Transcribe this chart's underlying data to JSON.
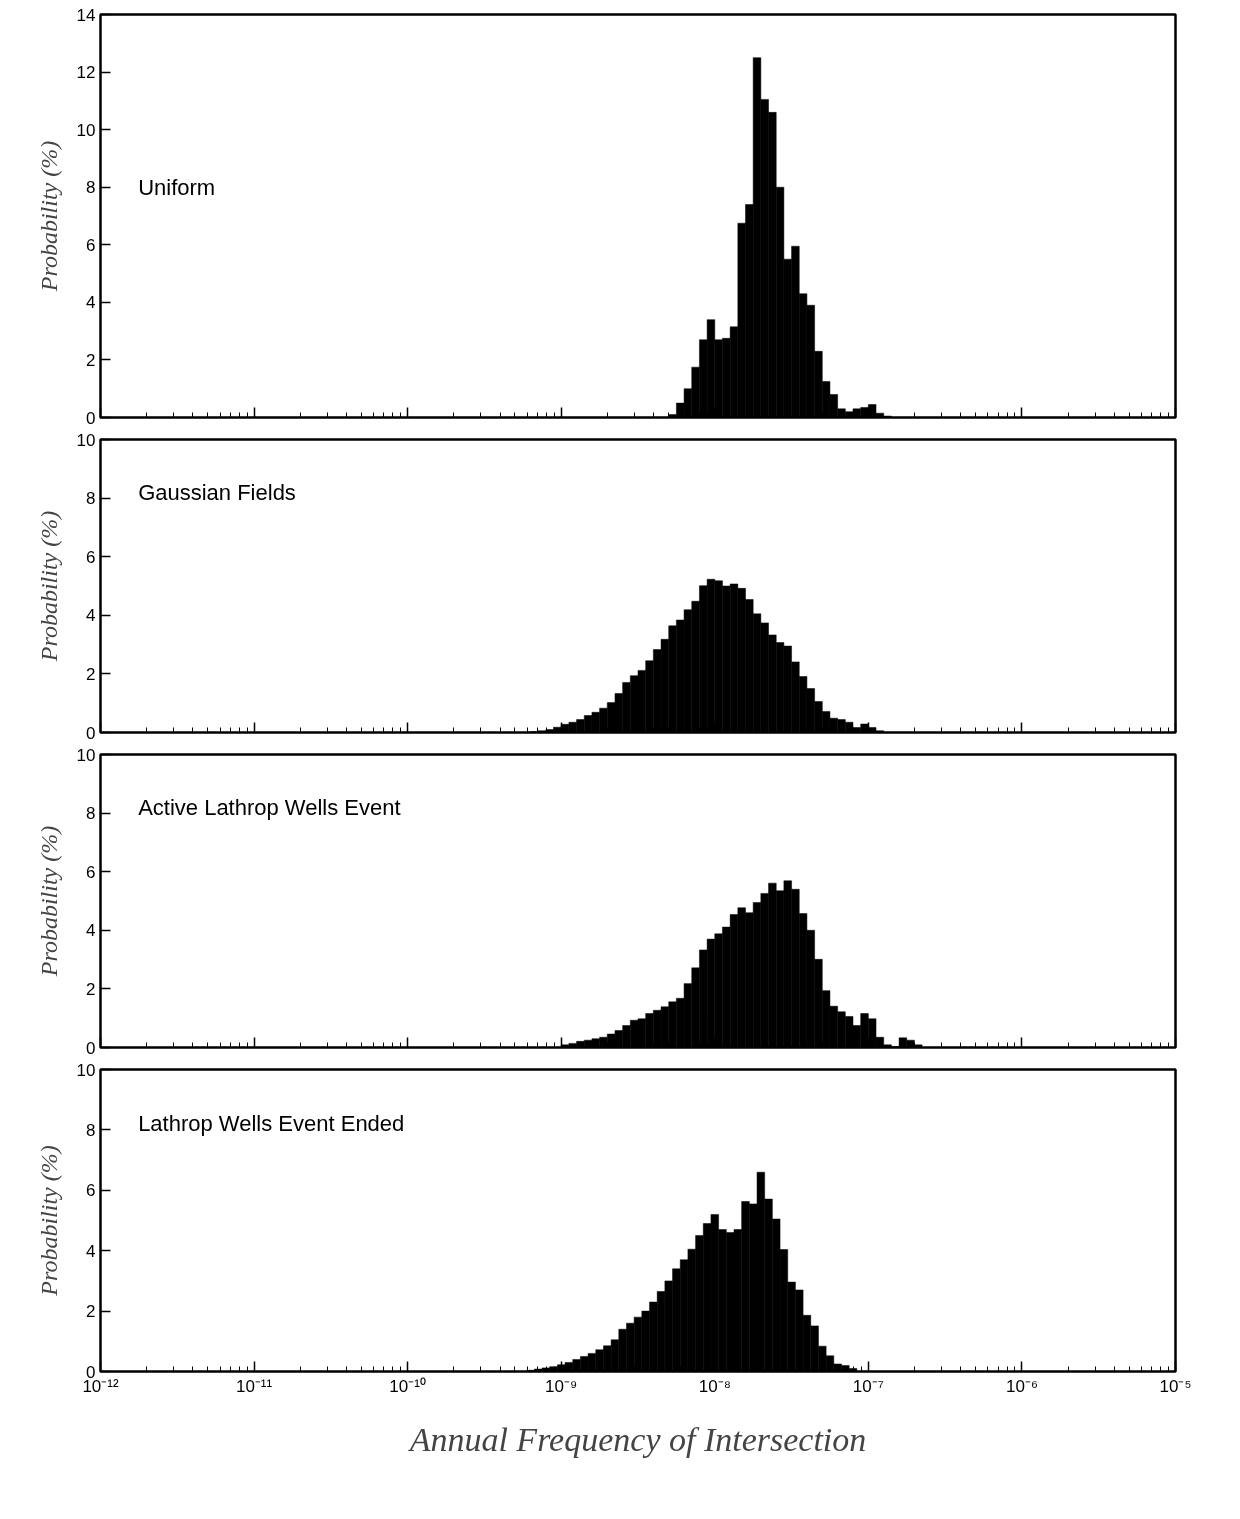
{
  "chart_data": [
    {
      "type": "histogram",
      "title": "Uniform",
      "ylabel": "Probability (%)",
      "log": "x",
      "grid": false,
      "tick_labels": "y",
      "color": "#000000",
      "bins": [
        5.012e-09,
        5.623e-09,
        6.31e-09,
        7.079e-09,
        7.943e-09,
        8.913e-09,
        1e-08,
        1.122e-08,
        1.259e-08,
        1.413e-08,
        1.585e-08,
        1.778e-08,
        1.995e-08,
        2.239e-08,
        2.512e-08,
        2.818e-08,
        3.162e-08,
        3.548e-08,
        3.981e-08,
        4.467e-08,
        5.012e-08,
        5.623e-08,
        6.31e-08,
        7.079e-08,
        7.943e-08,
        8.913e-08,
        1e-07,
        1.122e-07,
        1.259e-07,
        1.413e-07
      ],
      "values": [
        0.1,
        0.5,
        1.0,
        1.75,
        2.7,
        3.4,
        2.7,
        2.75,
        3.15,
        6.75,
        7.4,
        12.5,
        11.05,
        10.6,
        8.0,
        5.5,
        5.95,
        4.3,
        3.9,
        2.3,
        1.25,
        0.8,
        0.3,
        0.2,
        0.3,
        0.35,
        0.45,
        0.15,
        0.05
      ],
      "xlim": [
        1e-12,
        1e-05
      ],
      "xticks": [
        {
          "value": 1e-12,
          "label": null
        },
        {
          "value": 1e-11,
          "label": null
        },
        {
          "value": 1e-10,
          "label": null
        },
        {
          "value": 1e-09,
          "label": null
        },
        {
          "value": 1e-08,
          "label": null
        },
        {
          "value": 1e-07,
          "label": null
        },
        {
          "value": 1e-06,
          "label": null
        },
        {
          "value": 1e-05,
          "label": null
        }
      ],
      "ylim": [
        0,
        14
      ],
      "yticks": [
        0,
        2,
        4,
        6,
        8,
        10,
        12,
        14
      ]
    },
    {
      "type": "histogram",
      "title": "Gaussian Fields",
      "ylabel": "Probability (%)",
      "log": "x",
      "grid": false,
      "tick_labels": "y",
      "color": "#000000",
      "bins": [
        6.31e-10,
        7.079e-10,
        7.943e-10,
        8.913e-10,
        1e-09,
        1.122e-09,
        1.259e-09,
        1.413e-09,
        1.585e-09,
        1.778e-09,
        1.995e-09,
        2.239e-09,
        2.512e-09,
        2.818e-09,
        3.162e-09,
        3.548e-09,
        3.981e-09,
        4.467e-09,
        5.012e-09,
        5.623e-09,
        6.31e-09,
        7.079e-09,
        7.943e-09,
        8.913e-09,
        1e-08,
        1.122e-08,
        1.259e-08,
        1.413e-08,
        1.585e-08,
        1.778e-08,
        1.995e-08,
        2.239e-08,
        2.512e-08,
        2.818e-08,
        3.162e-08,
        3.548e-08,
        3.981e-08,
        4.467e-08,
        5.012e-08,
        5.623e-08,
        6.31e-08,
        7.079e-08,
        7.943e-08,
        8.913e-08,
        1e-07,
        1.122e-07,
        1.259e-07
      ],
      "values": [
        0.03,
        0.06,
        0.1,
        0.18,
        0.28,
        0.35,
        0.44,
        0.58,
        0.69,
        0.83,
        1.02,
        1.33,
        1.71,
        1.94,
        2.12,
        2.45,
        2.83,
        3.18,
        3.64,
        3.84,
        4.19,
        4.48,
        5.01,
        5.23,
        5.18,
        5.0,
        5.07,
        4.92,
        4.54,
        4.05,
        3.74,
        3.33,
        3.07,
        2.95,
        2.41,
        1.91,
        1.5,
        1.06,
        0.72,
        0.49,
        0.44,
        0.35,
        0.17,
        0.29,
        0.17,
        0.06
      ],
      "xlim": [
        1e-12,
        1e-05
      ],
      "xticks": [
        {
          "value": 1e-12,
          "label": null
        },
        {
          "value": 1e-11,
          "label": null
        },
        {
          "value": 1e-10,
          "label": null
        },
        {
          "value": 1e-09,
          "label": null
        },
        {
          "value": 1e-08,
          "label": null
        },
        {
          "value": 1e-07,
          "label": null
        },
        {
          "value": 1e-06,
          "label": null
        },
        {
          "value": 1e-05,
          "label": null
        }
      ],
      "ylim": [
        0,
        10
      ],
      "yticks": [
        0,
        2,
        4,
        6,
        8,
        10
      ]
    },
    {
      "type": "histogram",
      "title": "Active Lathrop Wells Event",
      "ylabel": "Probability (%)",
      "log": "x",
      "grid": false,
      "tick_labels": "y",
      "color": "#000000",
      "bins": [
        1e-09,
        1.122e-09,
        1.259e-09,
        1.413e-09,
        1.585e-09,
        1.778e-09,
        1.995e-09,
        2.239e-09,
        2.512e-09,
        2.818e-09,
        3.162e-09,
        3.548e-09,
        3.981e-09,
        4.467e-09,
        5.012e-09,
        5.623e-09,
        6.31e-09,
        7.079e-09,
        7.943e-09,
        8.913e-09,
        1e-08,
        1.122e-08,
        1.259e-08,
        1.413e-08,
        1.585e-08,
        1.778e-08,
        1.995e-08,
        2.239e-08,
        2.512e-08,
        2.818e-08,
        3.162e-08,
        3.548e-08,
        3.981e-08,
        4.467e-08,
        5.012e-08,
        5.623e-08,
        6.31e-08,
        7.079e-08,
        7.943e-08,
        8.913e-08,
        1e-07,
        1.122e-07,
        1.259e-07,
        1.413e-07,
        1.585e-07,
        1.778e-07,
        1.995e-07,
        2.239e-07
      ],
      "values": [
        0.09,
        0.14,
        0.21,
        0.25,
        0.3,
        0.35,
        0.46,
        0.58,
        0.75,
        0.93,
        0.98,
        1.16,
        1.27,
        1.39,
        1.56,
        1.68,
        2.18,
        2.72,
        3.33,
        3.7,
        3.88,
        4.11,
        4.54,
        4.77,
        4.6,
        4.95,
        5.26,
        5.61,
        5.35,
        5.69,
        5.4,
        4.57,
        4.0,
        3.01,
        1.94,
        1.41,
        1.22,
        1.06,
        0.75,
        1.16,
        0.98,
        0.35,
        0.09,
        0.03,
        0.33,
        0.25,
        0.09
      ],
      "xlim": [
        1e-12,
        1e-05
      ],
      "xticks": [
        {
          "value": 1e-12,
          "label": null
        },
        {
          "value": 1e-11,
          "label": null
        },
        {
          "value": 1e-10,
          "label": null
        },
        {
          "value": 1e-09,
          "label": null
        },
        {
          "value": 1e-08,
          "label": null
        },
        {
          "value": 1e-07,
          "label": null
        },
        {
          "value": 1e-06,
          "label": null
        },
        {
          "value": 1e-05,
          "label": null
        }
      ],
      "ylim": [
        0,
        10
      ],
      "yticks": [
        0,
        2,
        4,
        6,
        8,
        10
      ]
    },
    {
      "type": "histogram",
      "title": "Lathrop Wells Event Ended",
      "ylabel": "Probability (%)",
      "xlabel": "Annual Frequency of Intersection",
      "log": "x",
      "grid": false,
      "color": "#000000",
      "bins": [
        5.957e-10,
        6.683e-10,
        7.499e-10,
        8.414e-10,
        9.441e-10,
        1.059e-09,
        1.189e-09,
        1.334e-09,
        1.496e-09,
        1.679e-09,
        1.884e-09,
        2.113e-09,
        2.371e-09,
        2.661e-09,
        2.985e-09,
        3.35e-09,
        3.758e-09,
        4.217e-09,
        4.732e-09,
        5.309e-09,
        5.957e-09,
        6.683e-09,
        7.499e-09,
        8.414e-09,
        9.441e-09,
        1.059e-08,
        1.189e-08,
        1.334e-08,
        1.496e-08,
        1.679e-08,
        1.884e-08,
        2.113e-08,
        2.371e-08,
        2.661e-08,
        2.985e-08,
        3.35e-08,
        3.758e-08,
        4.217e-08,
        4.732e-08,
        5.309e-08,
        5.957e-08,
        6.683e-08,
        7.499e-08,
        8.414e-08
      ],
      "values": [
        0.04,
        0.08,
        0.12,
        0.16,
        0.22,
        0.3,
        0.4,
        0.5,
        0.6,
        0.72,
        0.85,
        1.05,
        1.4,
        1.6,
        1.8,
        2.0,
        2.3,
        2.65,
        3.0,
        3.4,
        3.7,
        4.05,
        4.5,
        4.9,
        5.2,
        4.7,
        4.6,
        4.7,
        5.63,
        5.55,
        6.6,
        5.71,
        5.05,
        4.04,
        2.96,
        2.7,
        1.86,
        1.51,
        0.84,
        0.52,
        0.25,
        0.2,
        0.1
      ],
      "xlim": [
        1e-12,
        1e-05
      ],
      "xticks": [
        {
          "value": 1e-12,
          "label": "10⁻¹²"
        },
        {
          "value": 1e-11,
          "label": "10⁻¹¹"
        },
        {
          "value": 1e-10,
          "label": "10⁻¹⁰"
        },
        {
          "value": 1e-09,
          "label": "10⁻⁹"
        },
        {
          "value": 1e-08,
          "label": "10⁻⁸"
        },
        {
          "value": 1e-07,
          "label": "10⁻⁷"
        },
        {
          "value": 1e-06,
          "label": "10⁻⁶"
        },
        {
          "value": 1e-05,
          "label": "10⁻⁵"
        }
      ],
      "ylim": [
        0,
        10
      ],
      "yticks": [
        0,
        2,
        4,
        6,
        8,
        10
      ]
    }
  ]
}
